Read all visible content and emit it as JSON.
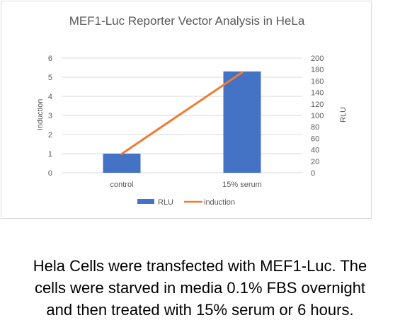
{
  "chart_data": {
    "type": "bar",
    "title": "MEF1-Luc Reporter Vector Analysis in HeLa",
    "categories": [
      "control",
      "15% serum"
    ],
    "series": [
      {
        "name": "RLU",
        "type": "bar",
        "axis": "left",
        "color": "#4472C4",
        "values": [
          1.0,
          5.3
        ]
      },
      {
        "name": "induction",
        "type": "line",
        "axis": "right",
        "color": "#ED7D31",
        "values": [
          33,
          175
        ]
      }
    ],
    "y_left": {
      "label": "Induction",
      "ylim": [
        0,
        6
      ],
      "ticks": [
        "0",
        "1",
        "2",
        "3",
        "4",
        "5",
        "6"
      ]
    },
    "y_right": {
      "label": "RLU",
      "ylim": [
        0,
        200
      ],
      "ticks": [
        "0",
        "20",
        "40",
        "60",
        "80",
        "100",
        "120",
        "140",
        "160",
        "180",
        "200"
      ]
    },
    "grid": true,
    "legend": "bottom"
  },
  "caption": {
    "lines": [
      "Hela Cells were transfected with MEF1-Luc. The",
      "cells were starved in media 0.1% FBS overnight",
      "and then treated with 15% serum or 6 hours."
    ]
  }
}
